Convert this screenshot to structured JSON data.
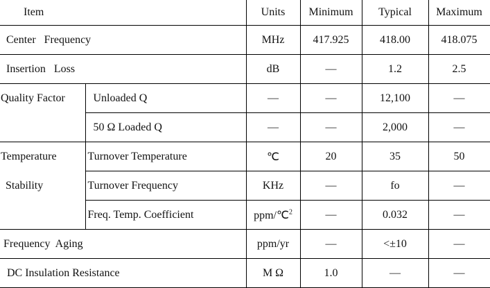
{
  "headers": {
    "item": "Item",
    "units": "Units",
    "minimum": "Minimum",
    "typical": "Typical",
    "maximum": "Maximum"
  },
  "rows": {
    "center_frequency": {
      "item": "Center   Frequency",
      "units": "MHz",
      "min": "417.925",
      "typ": "418.00",
      "max": "418.075"
    },
    "insertion_loss": {
      "item": "Insertion   Loss",
      "units": "dB",
      "min": "—",
      "typ": "1.2",
      "max": "2.5"
    },
    "quality_factor": {
      "group": "Quality Factor",
      "unloaded": {
        "item": "Unloaded Q",
        "units": "—",
        "min": "—",
        "typ": "12,100",
        "max": "—"
      },
      "loaded": {
        "item": "50 Ω Loaded Q",
        "units": "—",
        "min": "—",
        "typ": "2,000",
        "max": "—"
      }
    },
    "temperature_stability": {
      "group_line1": "Temperature",
      "group_line2": "Stability",
      "turnover_temp": {
        "item": "Turnover Temperature",
        "units": "℃",
        "min": "20",
        "typ": "35",
        "max": "50"
      },
      "turnover_freq": {
        "item": "Turnover Frequency",
        "units": "KHz",
        "min": "—",
        "typ": "fo",
        "max": "—"
      },
      "temp_coeff": {
        "item": "Freq. Temp. Coefficient",
        "units": "ppm/℃",
        "units_sup": "2",
        "min": "—",
        "typ": "0.032",
        "max": "—"
      }
    },
    "frequency_aging": {
      "item": "Frequency  Aging",
      "units": "ppm/yr",
      "min": "—",
      "typ": "<±10",
      "max": "—"
    },
    "dc_insulation": {
      "item": "DC Insulation Resistance",
      "units": "M Ω",
      "min": "1.0",
      "typ": "—",
      "max": "—"
    }
  }
}
